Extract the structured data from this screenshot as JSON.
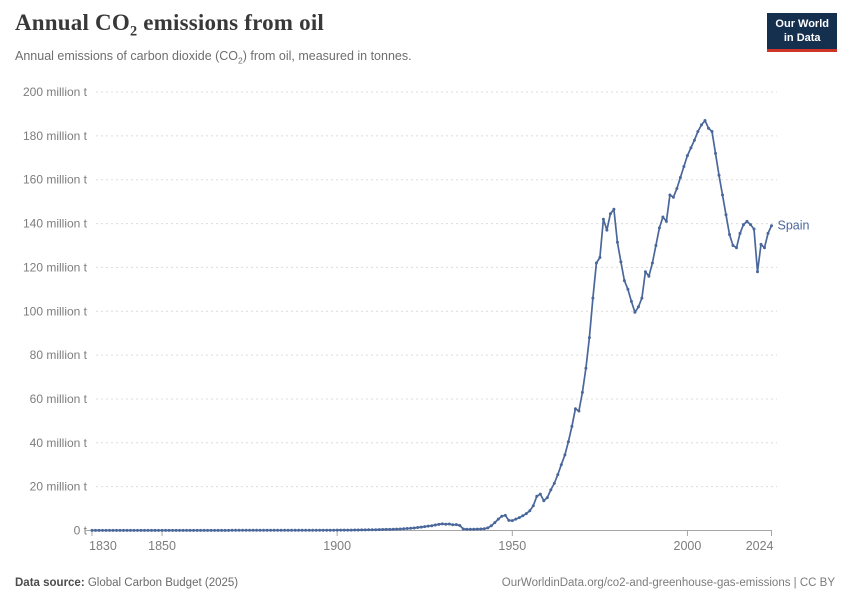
{
  "header": {
    "title_prefix": "Annual CO",
    "title_sub": "2",
    "title_suffix": " emissions from oil",
    "subtitle_prefix": "Annual emissions of carbon dioxide (CO",
    "subtitle_sub": "2",
    "subtitle_suffix": ") from oil, measured in tonnes."
  },
  "logo": {
    "line1": "Our World",
    "line2": "in Data",
    "bg_color": "#15304f",
    "accent_color": "#cf3429"
  },
  "footer": {
    "source_label": "Data source:",
    "source_value": " Global Carbon Budget (2025)",
    "link_text": "OurWorldinData.org/co2-and-greenhouse-gas-emissions | CC BY"
  },
  "chart_data": {
    "type": "line",
    "title": "Annual CO₂ emissions from oil",
    "subtitle": "Annual emissions of carbon dioxide (CO₂) from oil, measured in tonnes.",
    "entity": "Spain",
    "end_label": "Spain",
    "unit": "tonnes (millions)",
    "xlabel": "",
    "ylabel": "",
    "xlim": [
      1830,
      2024
    ],
    "ylim": [
      0,
      200
    ],
    "grid": "horizontal-dashed",
    "legend_position": "end-of-line",
    "line_color": "#4a679b",
    "marker": "circle",
    "x_ticks": [
      {
        "year": 1830,
        "label": "1830"
      },
      {
        "year": 1850,
        "label": "1850"
      },
      {
        "year": 1900,
        "label": "1900"
      },
      {
        "year": 1950,
        "label": "1950"
      },
      {
        "year": 2000,
        "label": "2000"
      },
      {
        "year": 2024,
        "label": "2024"
      }
    ],
    "y_ticks": [
      {
        "value": 0,
        "label": "0 t"
      },
      {
        "value": 20,
        "label": "20 million t"
      },
      {
        "value": 40,
        "label": "40 million t"
      },
      {
        "value": 60,
        "label": "60 million t"
      },
      {
        "value": 80,
        "label": "80 million t"
      },
      {
        "value": 100,
        "label": "100 million t"
      },
      {
        "value": 120,
        "label": "120 million t"
      },
      {
        "value": 140,
        "label": "140 million t"
      },
      {
        "value": 160,
        "label": "160 million t"
      },
      {
        "value": 180,
        "label": "180 million t"
      },
      {
        "value": 200,
        "label": "200 million t"
      }
    ],
    "series": [
      {
        "name": "Spain",
        "start_year": 1830,
        "end_year": 2024,
        "values_unit": "million tonnes CO2",
        "values": [
          0.03,
          0.03,
          0.03,
          0.03,
          0.03,
          0.03,
          0.03,
          0.03,
          0.03,
          0.03,
          0.03,
          0.03,
          0.03,
          0.03,
          0.03,
          0.03,
          0.03,
          0.03,
          0.03,
          0.03,
          0.05,
          0.05,
          0.05,
          0.05,
          0.05,
          0.05,
          0.05,
          0.05,
          0.05,
          0.05,
          0.05,
          0.05,
          0.05,
          0.05,
          0.05,
          0.05,
          0.05,
          0.05,
          0.05,
          0.05,
          0.08,
          0.08,
          0.08,
          0.08,
          0.08,
          0.08,
          0.08,
          0.08,
          0.08,
          0.08,
          0.08,
          0.08,
          0.08,
          0.08,
          0.08,
          0.1,
          0.1,
          0.1,
          0.1,
          0.1,
          0.1,
          0.1,
          0.1,
          0.1,
          0.1,
          0.13,
          0.13,
          0.13,
          0.13,
          0.13,
          0.16,
          0.17,
          0.18,
          0.19,
          0.2,
          0.22,
          0.24,
          0.26,
          0.28,
          0.3,
          0.33,
          0.36,
          0.4,
          0.44,
          0.48,
          0.52,
          0.57,
          0.62,
          0.68,
          0.78,
          0.9,
          1.0,
          1.15,
          1.35,
          1.55,
          1.8,
          2.0,
          2.2,
          2.5,
          2.8,
          3.0,
          2.85,
          2.95,
          2.6,
          2.7,
          2.3,
          0.7,
          0.55,
          0.55,
          0.6,
          0.65,
          0.7,
          0.8,
          1.2,
          2.2,
          3.6,
          5.2,
          6.5,
          6.9,
          4.6,
          4.5,
          5.2,
          5.9,
          6.7,
          7.7,
          9.0,
          11.3,
          15.6,
          16.6,
          13.6,
          15.0,
          18.5,
          21.5,
          25.5,
          30.0,
          34.5,
          40.5,
          47.5,
          55.5,
          54.5,
          63.0,
          74.0,
          88.0,
          106.0,
          122.0,
          124.5,
          142.0,
          137.0,
          144.5,
          146.5,
          131.5,
          122.5,
          114.0,
          110.0,
          104.5,
          99.5,
          102.0,
          106.0,
          118.0,
          116.0,
          122.0,
          130.0,
          138.0,
          143.0,
          141.0,
          153.0,
          152.0,
          156.0,
          161.0,
          166.0,
          171.0,
          174.5,
          178.0,
          182.0,
          185.0,
          187.0,
          183.5,
          182.0,
          172.0,
          162.0,
          153.0,
          144.0,
          135.0,
          130.0,
          129.0,
          135.5,
          139.5,
          141.0,
          139.5,
          137.5,
          118.0,
          130.5,
          129.0,
          135.5,
          139.0
        ]
      }
    ],
    "style": {
      "grid_color": "#dcdcdc",
      "axis_color": "#a6a6a6",
      "tick_label_color": "#7d7d7d"
    }
  }
}
